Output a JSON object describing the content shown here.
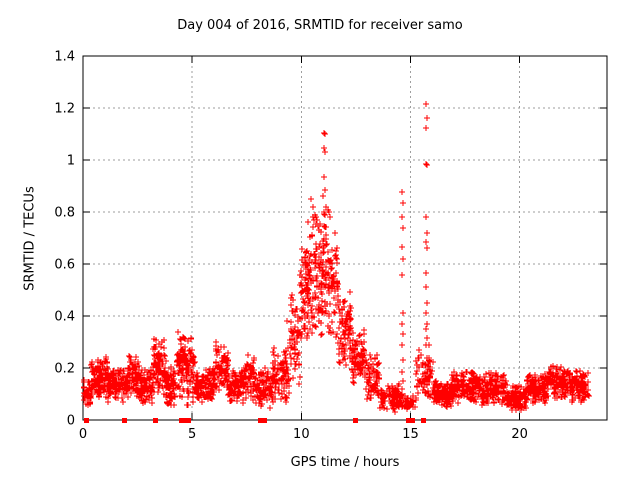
{
  "page": {
    "background": "#ffffff"
  },
  "chart_data": {
    "type": "scatter",
    "title": "Day 004 of 2016, SRMTID for receiver samo",
    "xlabel": "GPS time / hours",
    "ylabel": "SRMTID / TECUs",
    "xlim": [
      0,
      24
    ],
    "ylim": [
      0,
      1.4
    ],
    "xticks": [
      0,
      5,
      10,
      15,
      20
    ],
    "yticks": [
      0,
      0.2,
      0.4,
      0.6,
      0.8,
      1,
      1.2,
      1.4
    ],
    "grid": true,
    "legend_position": "none",
    "marker": {
      "shape": "plus",
      "color": "#ff0000",
      "size": 7
    },
    "zero_marker": {
      "shape": "filled-square",
      "color": "#ff0000",
      "size": 5
    },
    "grid_color": "#9e9e9e",
    "border_color": "#000000",
    "seed": 20160104,
    "bands_note": "dense scatter summarized as [x_start_h, x_end_h, y_low_TECU, y_high_TECU, n_points]",
    "bands": [
      [
        0.02,
        0.35,
        0.03,
        0.17,
        40
      ],
      [
        0.35,
        1.1,
        0.07,
        0.25,
        120
      ],
      [
        1.1,
        2.1,
        0.06,
        0.21,
        130
      ],
      [
        2.1,
        2.6,
        0.08,
        0.26,
        70
      ],
      [
        2.6,
        3.2,
        0.05,
        0.2,
        80
      ],
      [
        3.2,
        3.8,
        0.08,
        0.33,
        90
      ],
      [
        3.8,
        4.25,
        0.04,
        0.21,
        60
      ],
      [
        4.25,
        4.7,
        0.08,
        0.37,
        65
      ],
      [
        4.7,
        5.15,
        0.05,
        0.34,
        60
      ],
      [
        5.15,
        6.05,
        0.05,
        0.21,
        110
      ],
      [
        6.05,
        6.65,
        0.08,
        0.31,
        80
      ],
      [
        6.65,
        7.35,
        0.06,
        0.2,
        90
      ],
      [
        7.35,
        7.85,
        0.07,
        0.27,
        70
      ],
      [
        7.85,
        8.65,
        0.04,
        0.21,
        90
      ],
      [
        8.65,
        9.45,
        0.05,
        0.3,
        90
      ],
      [
        9.45,
        9.95,
        0.12,
        0.5,
        60
      ],
      [
        9.95,
        10.45,
        0.25,
        0.75,
        80
      ],
      [
        10.45,
        11.0,
        0.3,
        0.82,
        90
      ],
      [
        11.0,
        11.25,
        0.35,
        0.9,
        40
      ],
      [
        11.25,
        11.7,
        0.28,
        0.75,
        60
      ],
      [
        11.7,
        12.3,
        0.18,
        0.5,
        80
      ],
      [
        12.3,
        12.9,
        0.12,
        0.36,
        80
      ],
      [
        12.9,
        13.6,
        0.07,
        0.26,
        80
      ],
      [
        13.6,
        14.5,
        0.03,
        0.14,
        90
      ],
      [
        14.5,
        14.8,
        0.03,
        0.12,
        20
      ],
      [
        14.8,
        15.25,
        0.02,
        0.1,
        30
      ],
      [
        15.25,
        15.6,
        0.08,
        0.28,
        25
      ],
      [
        15.6,
        16.05,
        0.05,
        0.3,
        45
      ],
      [
        16.05,
        16.9,
        0.04,
        0.16,
        110
      ],
      [
        16.9,
        18.2,
        0.06,
        0.2,
        160
      ],
      [
        18.2,
        19.4,
        0.05,
        0.19,
        140
      ],
      [
        19.4,
        20.3,
        0.03,
        0.14,
        120
      ],
      [
        20.3,
        21.3,
        0.06,
        0.19,
        130
      ],
      [
        21.3,
        22.4,
        0.07,
        0.22,
        140
      ],
      [
        22.4,
        23.2,
        0.06,
        0.2,
        100
      ]
    ],
    "notable_points": [
      [
        11.03,
        1.105
      ],
      [
        11.07,
        1.1
      ],
      [
        11.04,
        1.045
      ],
      [
        11.08,
        1.03
      ],
      [
        11.05,
        0.935
      ],
      [
        11.09,
        0.885
      ],
      [
        10.97,
        0.86
      ],
      [
        10.45,
        0.85
      ],
      [
        10.52,
        0.82
      ],
      [
        11.28,
        0.8
      ],
      [
        11.33,
        0.78
      ],
      [
        10.3,
        0.76
      ],
      [
        10.62,
        0.79
      ],
      [
        10.73,
        0.77
      ],
      [
        9.55,
        0.42
      ],
      [
        9.35,
        0.38
      ],
      [
        9.62,
        0.46
      ],
      [
        9.93,
        0.52
      ],
      [
        10.02,
        0.55
      ]
    ],
    "spikes": [
      {
        "x_center_hours": 14.63,
        "points": [
          [
            14.62,
            0.877
          ],
          [
            14.64,
            0.835
          ],
          [
            14.63,
            0.78
          ],
          [
            14.65,
            0.74
          ],
          [
            14.62,
            0.665
          ],
          [
            14.64,
            0.62
          ],
          [
            14.63,
            0.557
          ],
          [
            14.65,
            0.41
          ],
          [
            14.62,
            0.37
          ],
          [
            14.64,
            0.33
          ],
          [
            14.63,
            0.288
          ],
          [
            14.65,
            0.23
          ],
          [
            14.63,
            0.185
          ],
          [
            14.64,
            0.15
          ],
          [
            14.62,
            0.12
          ]
        ]
      },
      {
        "x_center_hours": 15.73,
        "points": [
          [
            15.72,
            1.215
          ],
          [
            15.75,
            1.16
          ],
          [
            15.73,
            1.125
          ],
          [
            15.7,
            0.985
          ],
          [
            15.74,
            0.98
          ],
          [
            15.71,
            0.78
          ],
          [
            15.74,
            0.72
          ],
          [
            15.72,
            0.685
          ],
          [
            15.76,
            0.66
          ],
          [
            15.73,
            0.565
          ],
          [
            15.7,
            0.51
          ],
          [
            15.74,
            0.45
          ],
          [
            15.72,
            0.41
          ],
          [
            15.76,
            0.37
          ],
          [
            15.73,
            0.35
          ],
          [
            15.75,
            0.315
          ],
          [
            15.71,
            0.29
          ],
          [
            15.74,
            0.24
          ],
          [
            15.72,
            0.21
          ],
          [
            15.77,
            0.185
          ]
        ]
      }
    ],
    "zero_marker_hours": [
      0.18,
      1.9,
      3.3,
      4.5,
      4.67,
      4.85,
      8.15,
      8.32,
      12.46,
      14.9,
      15.08,
      15.6
    ]
  }
}
